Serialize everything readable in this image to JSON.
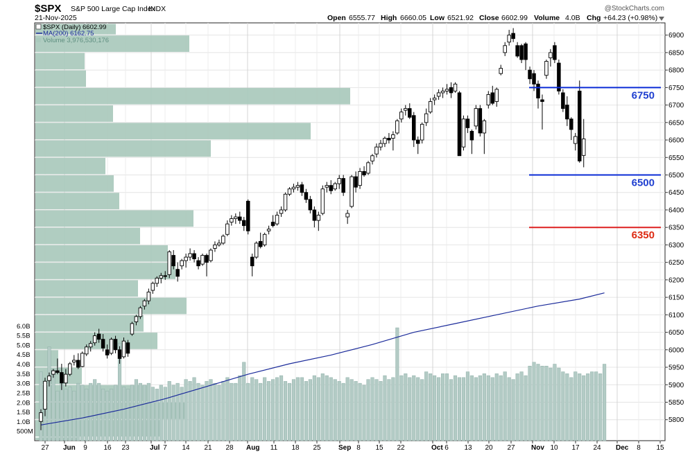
{
  "header": {
    "symbol": "$SPX",
    "name": "S&P 500 Large Cap Index",
    "exchange": "INDX",
    "date": "21-Nov-2025",
    "watermark": "@StockCharts.com",
    "open_label": "Open",
    "open": "6555.77",
    "high_label": "High",
    "high": "6660.05",
    "low_label": "Low",
    "low": "6521.92",
    "close_label": "Close",
    "close": "6602.99",
    "volume_label": "Volume",
    "volume": "4.0B",
    "chg_label": "Chg",
    "chg": "+64.23 (+0.98%)"
  },
  "legend": [
    "$SPX (Daily) 6602.99",
    "MA(200) 6162.75",
    "Volume 3,976,530,176"
  ],
  "colors": {
    "up_candle": "#ffffff",
    "down_candle": "#000000",
    "ma200": "#1a2a9a",
    "volume_bar": "#b3cbc5",
    "volume_profile": "#a9c9bc",
    "level_blue": "#0a2bd6",
    "level_red": "#dd1f1f",
    "label_blue": "#1f3fd0",
    "label_red": "#dd2a12"
  },
  "chart_data": {
    "type": "candlestick",
    "price_axis": {
      "ylim": [
        5740,
        6935
      ],
      "ticks": [
        "6900",
        "6850",
        "6800",
        "6750",
        "6700",
        "6650",
        "6600",
        "6550",
        "6500",
        "6450",
        "6400",
        "6350",
        "6300",
        "6250",
        "6200",
        "6150",
        "6100",
        "6050",
        "6000",
        "5950",
        "5900",
        "5850",
        "5800"
      ]
    },
    "volume_axis": {
      "ylim": [
        0,
        6.3
      ],
      "ticks": [
        "6.0B",
        "5.5B",
        "5.0B",
        "4.5B",
        "4.0B",
        "3.5B",
        "3.0B",
        "2.5B",
        "2.0B",
        "1.5B",
        "1.0B",
        "500M"
      ]
    },
    "date_axis": {
      "labels": [
        "27",
        "Jun",
        "9",
        "16",
        "23",
        "Jul",
        "7",
        "14",
        "21",
        "28",
        "Aug",
        "11",
        "18",
        "25",
        "Sep",
        "8",
        "15",
        "22",
        "Oct",
        "6",
        "13",
        "20",
        "27",
        "Nov",
        "10",
        "17",
        "24",
        "Dec",
        "8",
        "15"
      ],
      "bold": [
        "Jun",
        "Jul",
        "Aug",
        "Sep",
        "Oct",
        "Nov",
        "Dec"
      ],
      "grid": true
    },
    "candles": [
      {
        "o": 5795,
        "h": 5830,
        "l": 5770,
        "c": 5820
      },
      {
        "o": 5830,
        "h": 5920,
        "l": 5810,
        "c": 5910
      },
      {
        "o": 5912,
        "h": 5935,
        "l": 5895,
        "c": 5925
      },
      {
        "o": 5930,
        "h": 5945,
        "l": 5920,
        "c": 5940
      },
      {
        "o": 5940,
        "h": 5975,
        "l": 5930,
        "c": 5935
      },
      {
        "o": 5935,
        "h": 5960,
        "l": 5885,
        "c": 5905
      },
      {
        "o": 5905,
        "h": 5945,
        "l": 5895,
        "c": 5930
      },
      {
        "o": 5930,
        "h": 5965,
        "l": 5925,
        "c": 5960
      },
      {
        "o": 5965,
        "h": 5985,
        "l": 5955,
        "c": 5970
      },
      {
        "o": 5970,
        "h": 5990,
        "l": 5945,
        "c": 5950
      },
      {
        "o": 5952,
        "h": 5995,
        "l": 5950,
        "c": 5990
      },
      {
        "o": 5988,
        "h": 6015,
        "l": 5982,
        "c": 6008
      },
      {
        "o": 6008,
        "h": 6025,
        "l": 5995,
        "c": 6018
      },
      {
        "o": 6020,
        "h": 6050,
        "l": 6012,
        "c": 6040
      },
      {
        "o": 6045,
        "h": 6060,
        "l": 6020,
        "c": 6030
      },
      {
        "o": 6030,
        "h": 6045,
        "l": 5995,
        "c": 6005
      },
      {
        "o": 6000,
        "h": 6015,
        "l": 5975,
        "c": 5985
      },
      {
        "o": 5990,
        "h": 6035,
        "l": 5985,
        "c": 6030
      },
      {
        "o": 6030,
        "h": 6040,
        "l": 5990,
        "c": 6000
      },
      {
        "o": 6000,
        "h": 6010,
        "l": 5960,
        "c": 5975
      },
      {
        "o": 5980,
        "h": 6035,
        "l": 5975,
        "c": 6025
      },
      {
        "o": 6020,
        "h": 6028,
        "l": 5980,
        "c": 5990
      },
      {
        "o": 6045,
        "h": 6080,
        "l": 6040,
        "c": 6075
      },
      {
        "o": 6080,
        "h": 6100,
        "l": 6070,
        "c": 6095
      },
      {
        "o": 6095,
        "h": 6125,
        "l": 6088,
        "c": 6120
      },
      {
        "o": 6125,
        "h": 6145,
        "l": 6115,
        "c": 6140
      },
      {
        "o": 6140,
        "h": 6175,
        "l": 6130,
        "c": 6165
      },
      {
        "o": 6170,
        "h": 6195,
        "l": 6160,
        "c": 6190
      },
      {
        "o": 6190,
        "h": 6210,
        "l": 6180,
        "c": 6205
      },
      {
        "o": 6205,
        "h": 6220,
        "l": 6190,
        "c": 6212
      },
      {
        "o": 6212,
        "h": 6225,
        "l": 6200,
        "c": 6210
      },
      {
        "o": 6215,
        "h": 6285,
        "l": 6205,
        "c": 6280
      },
      {
        "o": 6270,
        "h": 6285,
        "l": 6230,
        "c": 6240
      },
      {
        "o": 6230,
        "h": 6250,
        "l": 6195,
        "c": 6210
      },
      {
        "o": 6240,
        "h": 6260,
        "l": 6230,
        "c": 6255
      },
      {
        "o": 6255,
        "h": 6275,
        "l": 6235,
        "c": 6265
      },
      {
        "o": 6265,
        "h": 6290,
        "l": 6255,
        "c": 6275
      },
      {
        "o": 6275,
        "h": 6285,
        "l": 6250,
        "c": 6260
      },
      {
        "o": 6255,
        "h": 6265,
        "l": 6230,
        "c": 6240
      },
      {
        "o": 6245,
        "h": 6275,
        "l": 6240,
        "c": 6270
      },
      {
        "o": 6270,
        "h": 6275,
        "l": 6210,
        "c": 6250
      },
      {
        "o": 6255,
        "h": 6290,
        "l": 6250,
        "c": 6285
      },
      {
        "o": 6290,
        "h": 6310,
        "l": 6280,
        "c": 6300
      },
      {
        "o": 6300,
        "h": 6315,
        "l": 6295,
        "c": 6305
      },
      {
        "o": 6305,
        "h": 6330,
        "l": 6300,
        "c": 6325
      },
      {
        "o": 6330,
        "h": 6370,
        "l": 6325,
        "c": 6360
      },
      {
        "o": 6365,
        "h": 6385,
        "l": 6355,
        "c": 6375
      },
      {
        "o": 6375,
        "h": 6390,
        "l": 6360,
        "c": 6380
      },
      {
        "o": 6380,
        "h": 6395,
        "l": 6360,
        "c": 6370
      },
      {
        "o": 6370,
        "h": 6380,
        "l": 6340,
        "c": 6355
      },
      {
        "o": 6425,
        "h": 6430,
        "l": 6330,
        "c": 6340
      },
      {
        "o": 6265,
        "h": 6275,
        "l": 6210,
        "c": 6240
      },
      {
        "o": 6265,
        "h": 6310,
        "l": 6260,
        "c": 6305
      },
      {
        "o": 6310,
        "h": 6335,
        "l": 6290,
        "c": 6295
      },
      {
        "o": 6300,
        "h": 6335,
        "l": 6295,
        "c": 6330
      },
      {
        "o": 6340,
        "h": 6355,
        "l": 6330,
        "c": 6345
      },
      {
        "o": 6365,
        "h": 6385,
        "l": 6350,
        "c": 6355
      },
      {
        "o": 6360,
        "h": 6395,
        "l": 6355,
        "c": 6385
      },
      {
        "o": 6390,
        "h": 6410,
        "l": 6380,
        "c": 6400
      },
      {
        "o": 6400,
        "h": 6450,
        "l": 6395,
        "c": 6445
      },
      {
        "o": 6445,
        "h": 6465,
        "l": 6440,
        "c": 6460
      },
      {
        "o": 6460,
        "h": 6475,
        "l": 6450,
        "c": 6465
      },
      {
        "o": 6465,
        "h": 6480,
        "l": 6455,
        "c": 6470
      },
      {
        "o": 6472,
        "h": 6480,
        "l": 6440,
        "c": 6450
      },
      {
        "o": 6450,
        "h": 6460,
        "l": 6420,
        "c": 6430
      },
      {
        "o": 6430,
        "h": 6440,
        "l": 6390,
        "c": 6400
      },
      {
        "o": 6400,
        "h": 6410,
        "l": 6350,
        "c": 6370
      },
      {
        "o": 6370,
        "h": 6395,
        "l": 6340,
        "c": 6385
      },
      {
        "o": 6390,
        "h": 6470,
        "l": 6385,
        "c": 6460
      },
      {
        "o": 6465,
        "h": 6480,
        "l": 6450,
        "c": 6470
      },
      {
        "o": 6470,
        "h": 6485,
        "l": 6445,
        "c": 6455
      },
      {
        "o": 6460,
        "h": 6480,
        "l": 6455,
        "c": 6475
      },
      {
        "o": 6475,
        "h": 6500,
        "l": 6460,
        "c": 6490
      },
      {
        "o": 6490,
        "h": 6500,
        "l": 6440,
        "c": 6450
      },
      {
        "o": 6380,
        "h": 6400,
        "l": 6360,
        "c": 6390
      },
      {
        "o": 6410,
        "h": 6500,
        "l": 6405,
        "c": 6495
      },
      {
        "o": 6495,
        "h": 6510,
        "l": 6450,
        "c": 6465
      },
      {
        "o": 6470,
        "h": 6520,
        "l": 6460,
        "c": 6510
      },
      {
        "o": 6510,
        "h": 6525,
        "l": 6495,
        "c": 6500
      },
      {
        "o": 6505,
        "h": 6540,
        "l": 6500,
        "c": 6535
      },
      {
        "o": 6540,
        "h": 6560,
        "l": 6530,
        "c": 6555
      },
      {
        "o": 6560,
        "h": 6590,
        "l": 6550,
        "c": 6580
      },
      {
        "o": 6580,
        "h": 6600,
        "l": 6570,
        "c": 6590
      },
      {
        "o": 6590,
        "h": 6610,
        "l": 6580,
        "c": 6605
      },
      {
        "o": 6605,
        "h": 6620,
        "l": 6590,
        "c": 6600
      },
      {
        "o": 6605,
        "h": 6625,
        "l": 6570,
        "c": 6615
      },
      {
        "o": 6620,
        "h": 6660,
        "l": 6615,
        "c": 6655
      },
      {
        "o": 6660,
        "h": 6690,
        "l": 6650,
        "c": 6680
      },
      {
        "o": 6685,
        "h": 6700,
        "l": 6670,
        "c": 6690
      },
      {
        "o": 6690,
        "h": 6705,
        "l": 6660,
        "c": 6665
      },
      {
        "o": 6670,
        "h": 6680,
        "l": 6580,
        "c": 6600
      },
      {
        "o": 6600,
        "h": 6610,
        "l": 6560,
        "c": 6590
      },
      {
        "o": 6600,
        "h": 6650,
        "l": 6590,
        "c": 6645
      },
      {
        "o": 6650,
        "h": 6690,
        "l": 6640,
        "c": 6675
      },
      {
        "o": 6680,
        "h": 6720,
        "l": 6675,
        "c": 6710
      },
      {
        "o": 6715,
        "h": 6730,
        "l": 6700,
        "c": 6720
      },
      {
        "o": 6725,
        "h": 6745,
        "l": 6715,
        "c": 6735
      },
      {
        "o": 6735,
        "h": 6750,
        "l": 6720,
        "c": 6740
      },
      {
        "o": 6740,
        "h": 6760,
        "l": 6730,
        "c": 6745
      },
      {
        "o": 6750,
        "h": 6765,
        "l": 6720,
        "c": 6735
      },
      {
        "o": 6740,
        "h": 6765,
        "l": 6735,
        "c": 6760
      },
      {
        "o": 6735,
        "h": 6740,
        "l": 6555,
        "c": 6555
      },
      {
        "o": 6580,
        "h": 6670,
        "l": 6570,
        "c": 6660
      },
      {
        "o": 6660,
        "h": 6670,
        "l": 6620,
        "c": 6635
      },
      {
        "o": 6625,
        "h": 6630,
        "l": 6560,
        "c": 6600
      },
      {
        "o": 6640,
        "h": 6700,
        "l": 6630,
        "c": 6690
      },
      {
        "o": 6690,
        "h": 6700,
        "l": 6610,
        "c": 6620
      },
      {
        "o": 6620,
        "h": 6660,
        "l": 6560,
        "c": 6655
      },
      {
        "o": 6700,
        "h": 6740,
        "l": 6690,
        "c": 6730
      },
      {
        "o": 6735,
        "h": 6755,
        "l": 6700,
        "c": 6705
      },
      {
        "o": 6710,
        "h": 6750,
        "l": 6695,
        "c": 6745
      },
      {
        "o": 6790,
        "h": 6815,
        "l": 6785,
        "c": 6805
      },
      {
        "o": 6850,
        "h": 6880,
        "l": 6840,
        "c": 6870
      },
      {
        "o": 6880,
        "h": 6915,
        "l": 6870,
        "c": 6900
      },
      {
        "o": 6905,
        "h": 6920,
        "l": 6880,
        "c": 6890
      },
      {
        "o": 6870,
        "h": 6880,
        "l": 6835,
        "c": 6840
      },
      {
        "o": 6870,
        "h": 6875,
        "l": 6820,
        "c": 6830
      },
      {
        "o": 6875,
        "h": 6880,
        "l": 6800,
        "c": 6830
      },
      {
        "o": 6800,
        "h": 6810,
        "l": 6760,
        "c": 6775
      },
      {
        "o": 6790,
        "h": 6800,
        "l": 6740,
        "c": 6760
      },
      {
        "o": 6760,
        "h": 6770,
        "l": 6690,
        "c": 6720
      },
      {
        "o": 6715,
        "h": 6730,
        "l": 6630,
        "c": 6710
      },
      {
        "o": 6785,
        "h": 6830,
        "l": 6775,
        "c": 6825
      },
      {
        "o": 6835,
        "h": 6860,
        "l": 6810,
        "c": 6850
      },
      {
        "o": 6870,
        "h": 6880,
        "l": 6820,
        "c": 6830
      },
      {
        "o": 6820,
        "h": 6830,
        "l": 6730,
        "c": 6740
      },
      {
        "o": 6735,
        "h": 6745,
        "l": 6680,
        "c": 6690
      },
      {
        "o": 6700,
        "h": 6725,
        "l": 6640,
        "c": 6660
      },
      {
        "o": 6660,
        "h": 6665,
        "l": 6600,
        "c": 6630
      },
      {
        "o": 6590,
        "h": 6620,
        "l": 6570,
        "c": 6610
      },
      {
        "o": 6740,
        "h": 6770,
        "l": 6535,
        "c": 6540
      },
      {
        "o": 6555.77,
        "h": 6660.05,
        "l": 6521.92,
        "c": 6602.99
      }
    ],
    "ma200": [
      [
        0,
        5785
      ],
      [
        10,
        5805
      ],
      [
        20,
        5830
      ],
      [
        30,
        5860
      ],
      [
        40,
        5895
      ],
      [
        50,
        5930
      ],
      [
        60,
        5960
      ],
      [
        70,
        5985
      ],
      [
        80,
        6015
      ],
      [
        90,
        6050
      ],
      [
        100,
        6075
      ],
      [
        110,
        6100
      ],
      [
        120,
        6125
      ],
      [
        130,
        6145
      ],
      [
        136,
        6162.75
      ]
    ],
    "volume": [
      3.6,
      3.1,
      4.9,
      3.7,
      2.6,
      3.0,
      2.7,
      2.8,
      2.6,
      3.0,
      2.9,
      2.7,
      3.0,
      3.2,
      3.0,
      2.7,
      2.6,
      2.7,
      2.9,
      5.1,
      2.8,
      2.7,
      2.9,
      3.2,
      3.0,
      2.9,
      3.0,
      2.8,
      2.7,
      2.9,
      2.8,
      3.1,
      2.9,
      3.0,
      2.8,
      3.2,
      3.1,
      3.3,
      3.0,
      2.9,
      3.1,
      3.2,
      3.0,
      2.9,
      3.1,
      3.3,
      3.0,
      3.0,
      3.4,
      4.1,
      3.0,
      3.3,
      3.2,
      3.0,
      3.3,
      3.1,
      3.2,
      3.3,
      3.4,
      3.1,
      3.0,
      3.2,
      3.3,
      3.3,
      3.1,
      3.2,
      3.4,
      3.3,
      3.5,
      3.4,
      3.3,
      3.2,
      3.1,
      3.0,
      3.3,
      3.2,
      3.1,
      3.0,
      2.9,
      3.2,
      3.3,
      3.2,
      3.1,
      3.4,
      3.2,
      3.3,
      5.9,
      3.4,
      3.5,
      3.3,
      3.4,
      3.3,
      3.2,
      3.6,
      3.5,
      3.4,
      3.3,
      3.5,
      3.5,
      3.2,
      3.4,
      3.3,
      3.3,
      3.6,
      3.4,
      3.3,
      3.4,
      3.5,
      3.4,
      3.3,
      3.5,
      3.4,
      3.6,
      3.3,
      3.2,
      3.5,
      3.6,
      3.4,
      3.9,
      4.1,
      4.0,
      3.9,
      3.9,
      3.8,
      4.0,
      3.8,
      3.6,
      3.5,
      3.3,
      3.6,
      3.5,
      3.4,
      3.5,
      3.6,
      3.6,
      3.5,
      4.0
    ],
    "volume_by_price": [
      {
        "low": 6900,
        "high": 6935,
        "value": 116
      },
      {
        "low": 6850,
        "high": 6900,
        "value": 222
      },
      {
        "low": 6800,
        "high": 6850,
        "value": 71
      },
      {
        "low": 6750,
        "high": 6800,
        "value": 73
      },
      {
        "low": 6700,
        "high": 6750,
        "value": 454
      },
      {
        "low": 6650,
        "high": 6700,
        "value": 112
      },
      {
        "low": 6600,
        "high": 6650,
        "value": 397
      },
      {
        "low": 6550,
        "high": 6600,
        "value": 253
      },
      {
        "low": 6500,
        "high": 6550,
        "value": 101
      },
      {
        "low": 6450,
        "high": 6500,
        "value": 113
      },
      {
        "low": 6400,
        "high": 6450,
        "value": 121
      },
      {
        "low": 6350,
        "high": 6400,
        "value": 228
      },
      {
        "low": 6300,
        "high": 6350,
        "value": 151
      },
      {
        "low": 6250,
        "high": 6300,
        "value": 191
      },
      {
        "low": 6200,
        "high": 6250,
        "value": 202
      },
      {
        "low": 6150,
        "high": 6200,
        "value": 148
      },
      {
        "low": 6100,
        "high": 6150,
        "value": 218
      },
      {
        "low": 6050,
        "high": 6100,
        "value": 156
      },
      {
        "low": 6000,
        "high": 6050,
        "value": 176
      },
      {
        "low": 5950,
        "high": 6000,
        "value": 33
      },
      {
        "low": 5900,
        "high": 5950,
        "value": 67
      },
      {
        "low": 5850,
        "high": 5900,
        "value": 161
      },
      {
        "low": 5800,
        "high": 5850,
        "value": 219
      },
      {
        "low": 5750,
        "high": 5800,
        "value": 183
      },
      {
        "low": 5700,
        "high": 5750,
        "value": 64
      },
      {
        "low": 5650,
        "high": 5700,
        "value": 56
      }
    ],
    "levels": [
      {
        "value": 6750,
        "label": "6750",
        "color": "#0a2bd6"
      },
      {
        "value": 6500,
        "label": "6500",
        "color": "#0a2bd6"
      },
      {
        "value": 6350,
        "label": "6350",
        "color": "#dd1f1f"
      }
    ]
  }
}
